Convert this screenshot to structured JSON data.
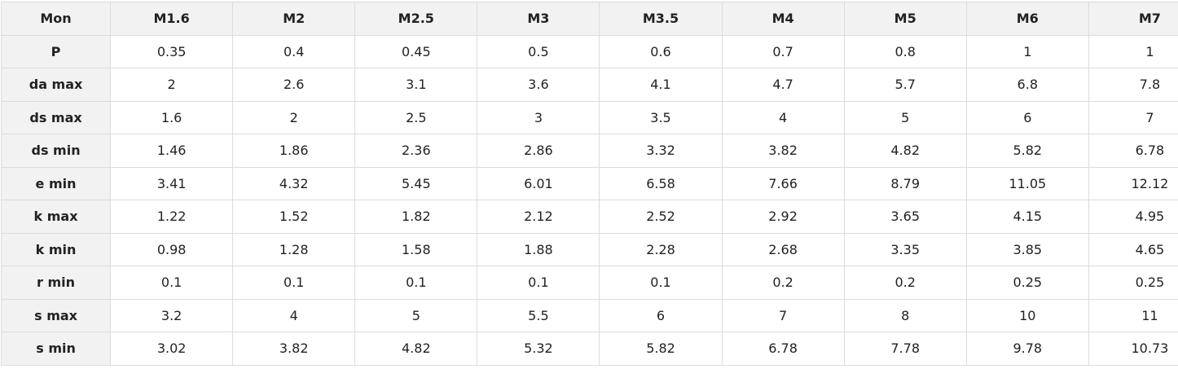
{
  "table": {
    "header": [
      "Mon",
      "M1.6",
      "M2",
      "M2.5",
      "M3",
      "M3.5",
      "M4",
      "M5",
      "M6",
      "M7"
    ],
    "rows": [
      [
        "P",
        "0.35",
        "0.4",
        "0.45",
        "0.5",
        "0.6",
        "0.7",
        "0.8",
        "1",
        "1"
      ],
      [
        "da max",
        "2",
        "2.6",
        "3.1",
        "3.6",
        "4.1",
        "4.7",
        "5.7",
        "6.8",
        "7.8"
      ],
      [
        "ds max",
        "1.6",
        "2",
        "2.5",
        "3",
        "3.5",
        "4",
        "5",
        "6",
        "7"
      ],
      [
        "ds min",
        "1.46",
        "1.86",
        "2.36",
        "2.86",
        "3.32",
        "3.82",
        "4.82",
        "5.82",
        "6.78"
      ],
      [
        "e min",
        "3.41",
        "4.32",
        "5.45",
        "6.01",
        "6.58",
        "7.66",
        "8.79",
        "11.05",
        "12.12"
      ],
      [
        "k max",
        "1.22",
        "1.52",
        "1.82",
        "2.12",
        "2.52",
        "2.92",
        "3.65",
        "4.15",
        "4.95"
      ],
      [
        "k min",
        "0.98",
        "1.28",
        "1.58",
        "1.88",
        "2.28",
        "2.68",
        "3.35",
        "3.85",
        "4.65"
      ],
      [
        "r min",
        "0.1",
        "0.1",
        "0.1",
        "0.1",
        "0.1",
        "0.2",
        "0.2",
        "0.25",
        "0.25"
      ],
      [
        "s max",
        "3.2",
        "4",
        "5",
        "5.5",
        "6",
        "7",
        "8",
        "10",
        "11"
      ],
      [
        "s min",
        "3.02",
        "3.82",
        "4.82",
        "5.32",
        "5.82",
        "6.78",
        "7.78",
        "9.78",
        "10.73"
      ]
    ]
  }
}
